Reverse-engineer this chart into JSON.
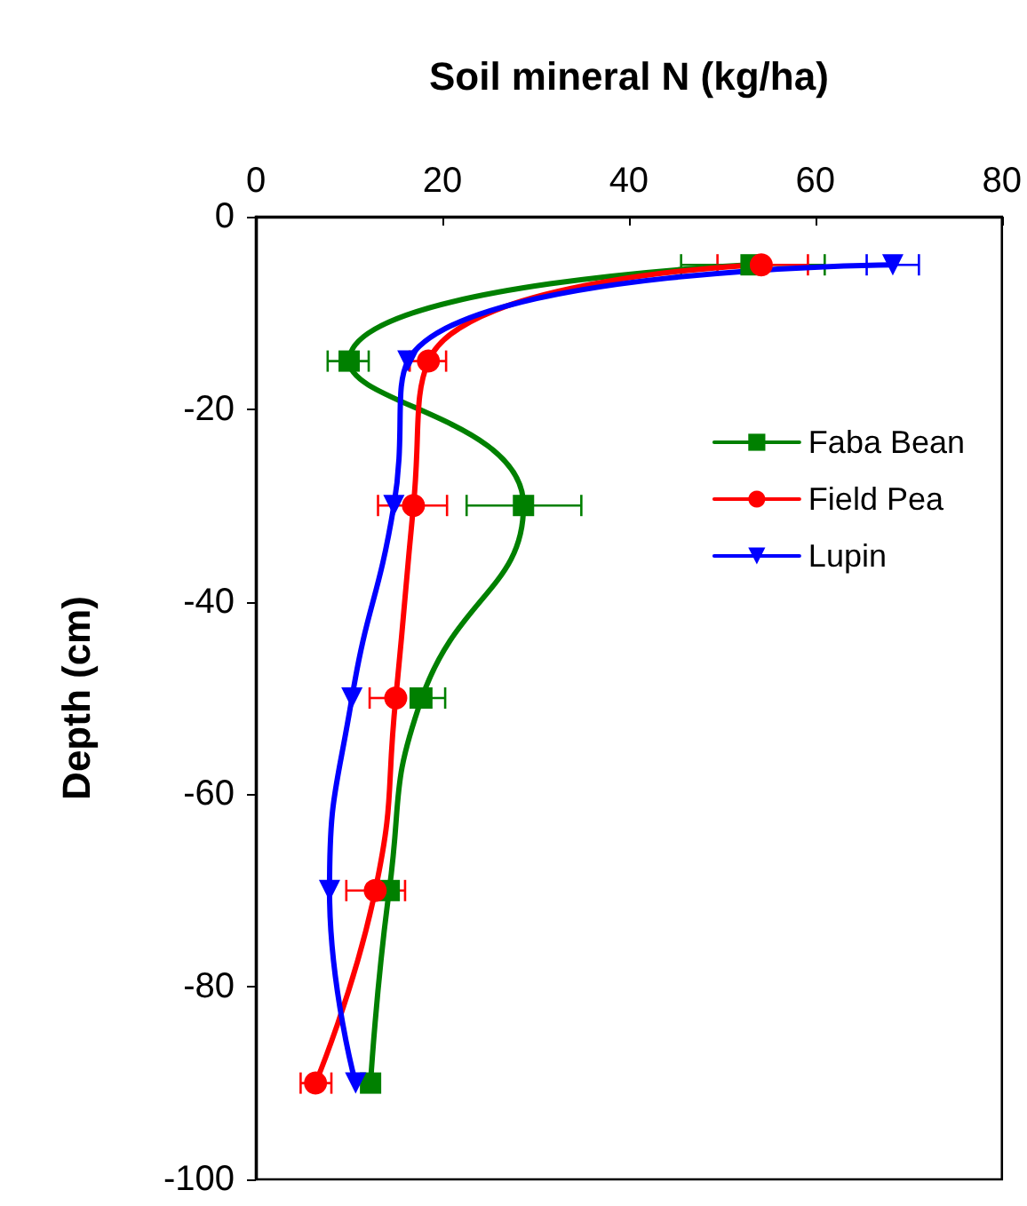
{
  "chart_data": {
    "type": "line",
    "xlabel": "Soil mineral N (kg/ha)",
    "ylabel": "Depth (cm)",
    "xlim": [
      0,
      80
    ],
    "xticks": [
      0,
      20,
      40,
      60,
      80
    ],
    "ylim": [
      -100,
      0
    ],
    "yticks": [
      -100,
      -80,
      -60,
      -40,
      -20,
      0
    ],
    "grid": false,
    "legend": "right",
    "line_style": "solid",
    "series": [
      {
        "name": "Faba Bean",
        "color": "#008000",
        "marker": "square",
        "x": [
          53.1,
          10.0,
          28.7,
          17.8,
          14.3,
          12.3
        ],
        "values": [
          -5,
          -15,
          -30,
          -50,
          -70,
          -90
        ],
        "xerrors": [
          [
            45.6,
            61.0
          ],
          [
            7.7,
            12.1
          ],
          [
            22.6,
            34.9
          ],
          [
            16.6,
            20.3
          ],
          null,
          null
        ]
      },
      {
        "name": "Field Pea",
        "color": "#ff0000",
        "marker": "circle",
        "x": [
          54.2,
          18.5,
          16.9,
          15.0,
          12.8,
          6.4
        ],
        "values": [
          -5,
          -15,
          -30,
          -50,
          -70,
          -90
        ],
        "xerrors": [
          [
            49.5,
            59.2
          ],
          [
            16.5,
            20.4
          ],
          [
            13.1,
            20.5
          ],
          [
            12.2,
            15.0
          ],
          [
            9.7,
            16.0
          ],
          [
            4.8,
            8.1
          ]
        ]
      },
      {
        "name": "Lupin",
        "color": "#0000ff",
        "marker": "triangle",
        "x": [
          68.3,
          16.3,
          14.8,
          10.3,
          7.9,
          10.7
        ],
        "values": [
          -5,
          -15,
          -30,
          -50,
          -70,
          -90
        ],
        "xerrors": [
          [
            65.5,
            71.1
          ],
          null,
          null,
          null,
          null,
          null
        ]
      }
    ]
  }
}
